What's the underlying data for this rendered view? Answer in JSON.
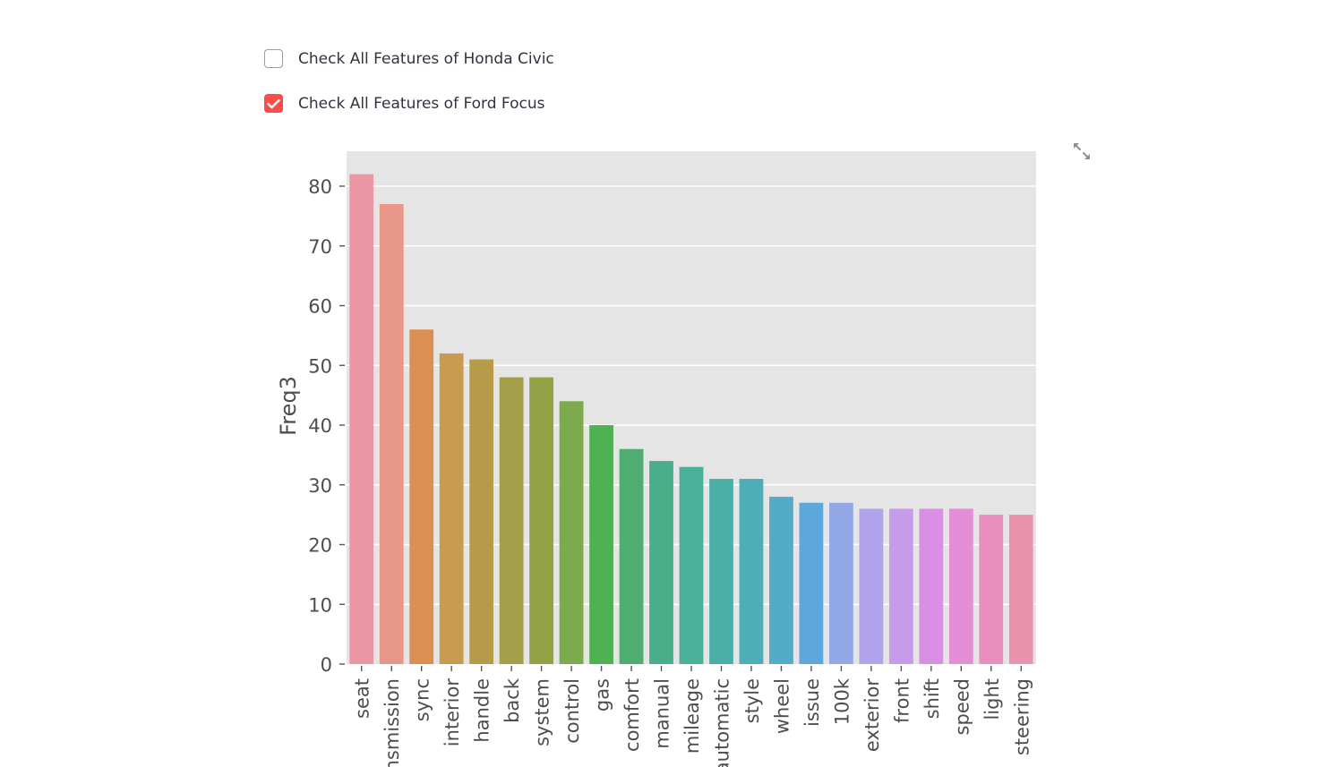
{
  "controls": {
    "civic_checkbox": {
      "label": "Check All Features of Honda Civic",
      "checked": false
    },
    "focus_checkbox": {
      "label": "Check All Features of Ford Focus",
      "checked": true
    },
    "accent_color": "#ff4b4b",
    "expand_icon": "expand-arrows-icon"
  },
  "chart_data": {
    "type": "bar",
    "ylabel": "Freq3",
    "xlabel": "",
    "ylim": [
      0,
      86
    ],
    "yticks": [
      0,
      10,
      20,
      30,
      40,
      50,
      60,
      70,
      80
    ],
    "grid": true,
    "categories": [
      "seat",
      "transmission",
      "sync",
      "interior",
      "handle",
      "back",
      "system",
      "control",
      "gas",
      "comfort",
      "manual",
      "mileage",
      "automatic",
      "style",
      "wheel",
      "issue",
      "100k",
      "exterior",
      "front",
      "shift",
      "speed",
      "light",
      "steering"
    ],
    "values": [
      82,
      77,
      56,
      52,
      51,
      48,
      48,
      44,
      40,
      36,
      34,
      33,
      31,
      31,
      28,
      27,
      27,
      26,
      26,
      26,
      26,
      25,
      25
    ],
    "colors": [
      "#ea96a3",
      "#e8968a",
      "#dc8f52",
      "#c99b51",
      "#b59b4a",
      "#a39e48",
      "#92a245",
      "#7cab4d",
      "#4eb152",
      "#4ead70",
      "#4bae8a",
      "#4bb09a",
      "#4cafa7",
      "#4fadb8",
      "#53abc8",
      "#5ca8dc",
      "#92a8e7",
      "#b2a4ec",
      "#c69bea",
      "#d98fe4",
      "#e58ed8",
      "#ea8fbd",
      "#ea93ad"
    ]
  }
}
